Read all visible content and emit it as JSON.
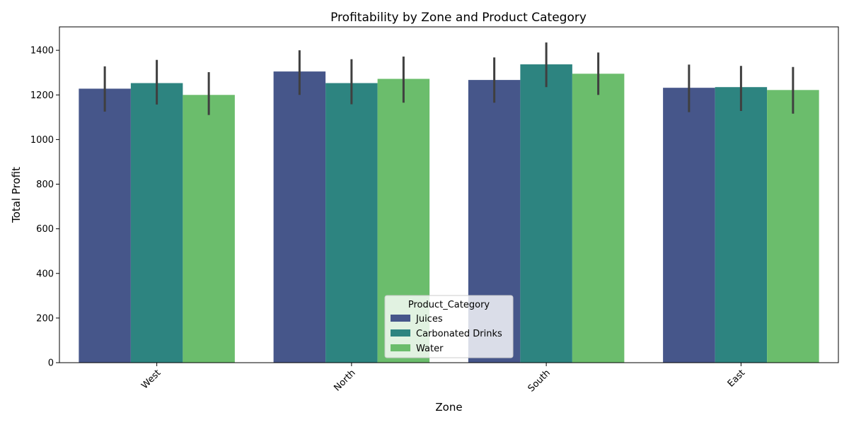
{
  "chart_data": {
    "type": "bar",
    "title": "Profitability by Zone and Product Category",
    "xlabel": "Zone",
    "ylabel": "Total Profit",
    "categories": [
      "West",
      "North",
      "South",
      "East"
    ],
    "series": [
      {
        "name": "Juices",
        "color": "#46568a",
        "values": [
          1228,
          1305,
          1267,
          1232
        ],
        "ci": [
          [
            1125,
            1328
          ],
          [
            1200,
            1400
          ],
          [
            1165,
            1368
          ],
          [
            1123,
            1336
          ]
        ]
      },
      {
        "name": "Carbonated Drinks",
        "color": "#2d8480",
        "values": [
          1253,
          1253,
          1337,
          1235
        ],
        "ci": [
          [
            1157,
            1357
          ],
          [
            1158,
            1360
          ],
          [
            1235,
            1435
          ],
          [
            1128,
            1330
          ]
        ]
      },
      {
        "name": "Water",
        "color": "#6bbd6c",
        "values": [
          1200,
          1272,
          1295,
          1222
        ],
        "ci": [
          [
            1110,
            1302
          ],
          [
            1165,
            1372
          ],
          [
            1200,
            1390
          ],
          [
            1116,
            1325
          ]
        ]
      }
    ],
    "yticks": [
      0,
      200,
      400,
      600,
      800,
      1000,
      1200,
      1400
    ],
    "ylim": [
      0,
      1505
    ],
    "grid": false,
    "legend": {
      "title": "Product_Category",
      "placement": "lower center"
    }
  }
}
